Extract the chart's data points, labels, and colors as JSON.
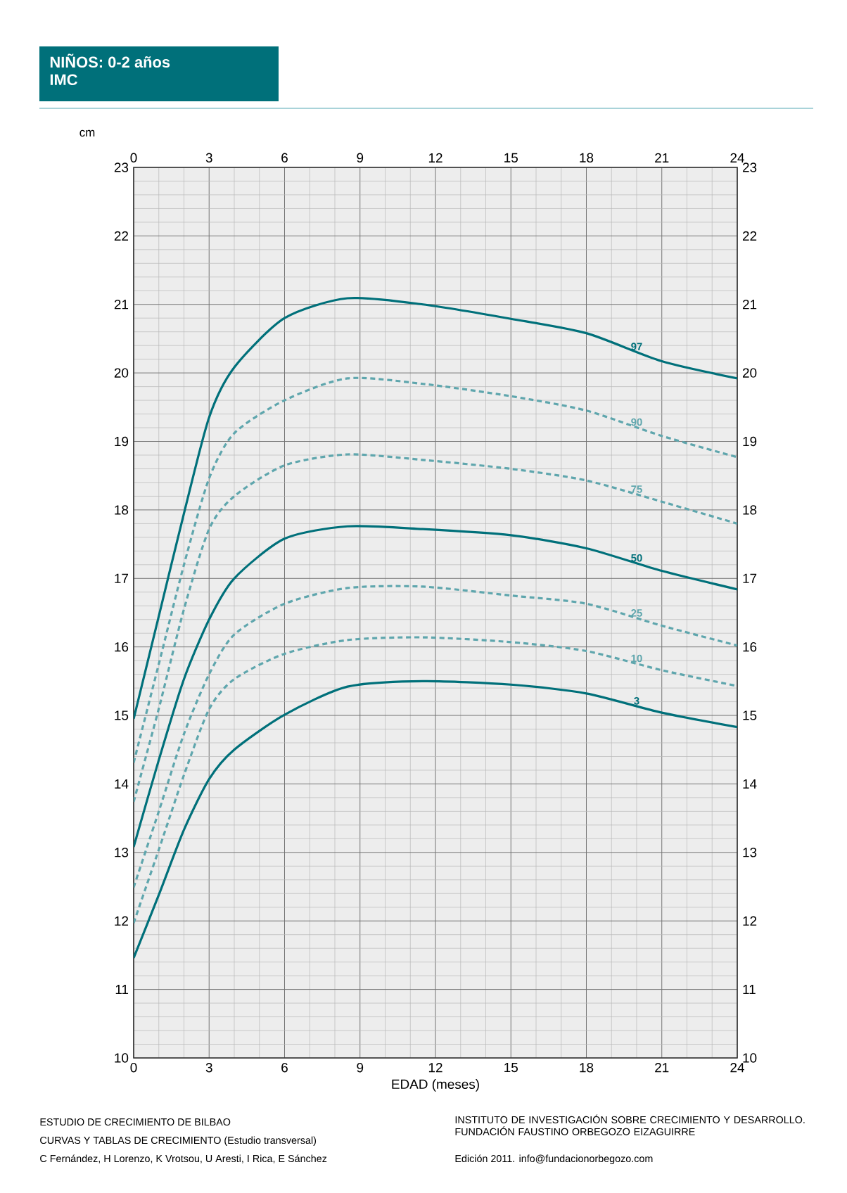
{
  "chart_data": {
    "type": "line",
    "title": "NIÑOS: 0-2 años",
    "subtitle": "IMC",
    "xlabel": "EDAD (meses)",
    "ylabel": "cm",
    "x": [
      0,
      1,
      2,
      3,
      4,
      6,
      8.5,
      11.5,
      15,
      18,
      21,
      24
    ],
    "series": [
      {
        "name": "3",
        "color": "#00707a",
        "line_style": "solid",
        "values": [
          11.46,
          12.38,
          13.33,
          14.07,
          14.5,
          15.01,
          15.42,
          15.5,
          15.45,
          15.32,
          15.04,
          14.83
        ]
      },
      {
        "name": "10",
        "color": "#5fa6ad",
        "line_style": "dashed",
        "values": [
          11.97,
          13.04,
          14.13,
          15.09,
          15.53,
          15.9,
          16.1,
          16.14,
          16.07,
          15.94,
          15.66,
          15.43
        ]
      },
      {
        "name": "25",
        "color": "#5fa6ad",
        "line_style": "dashed",
        "values": [
          12.49,
          13.6,
          14.73,
          15.6,
          16.18,
          16.63,
          16.86,
          16.88,
          16.75,
          16.63,
          16.31,
          16.02
        ]
      },
      {
        "name": "50",
        "color": "#00707a",
        "line_style": "solid",
        "values": [
          13.08,
          14.35,
          15.53,
          16.4,
          17.0,
          17.58,
          17.76,
          17.72,
          17.63,
          17.44,
          17.11,
          16.84
        ]
      },
      {
        "name": "75",
        "color": "#5fa6ad",
        "line_style": "dashed",
        "values": [
          13.74,
          15.1,
          16.55,
          17.72,
          18.2,
          18.65,
          18.81,
          18.73,
          18.6,
          18.43,
          18.12,
          17.8
        ]
      },
      {
        "name": "90",
        "color": "#5fa6ad",
        "line_style": "dashed",
        "values": [
          14.31,
          15.75,
          17.2,
          18.46,
          19.12,
          19.6,
          19.92,
          19.84,
          19.66,
          19.45,
          19.08,
          18.77
        ]
      },
      {
        "name": "97",
        "color": "#00707a",
        "line_style": "solid",
        "values": [
          14.95,
          16.45,
          17.95,
          19.35,
          20.08,
          20.8,
          21.09,
          21.0,
          20.79,
          20.58,
          20.17,
          19.92
        ]
      }
    ],
    "xlim": [
      0,
      24
    ],
    "xticks": [
      0,
      3,
      6,
      9,
      12,
      15,
      18,
      21,
      24
    ],
    "x2lim": [
      0,
      24
    ],
    "x2ticks": [
      0,
      3,
      6,
      9,
      12,
      15,
      18,
      21,
      24
    ],
    "ylim": [
      10,
      23
    ],
    "yticks": [
      10,
      11,
      12,
      13,
      14,
      15,
      16,
      17,
      18,
      19,
      20,
      21,
      22,
      23
    ],
    "y2lim": [
      10,
      23
    ],
    "y2ticks": [
      10,
      11,
      12,
      13,
      14,
      15,
      16,
      17,
      18,
      19,
      20,
      21,
      22,
      23
    ],
    "grid": true,
    "marker": "none",
    "annotations": [
      "ESTUDIO DE CRECIMIENTO DE BILBAO",
      "CURVAS Y TABLAS DE CRECIMIENTO (Estudio transversal)",
      "C Fernández, H Lorenzo, K Vrotsou, U Aresti, I Rica, E Sánchez",
      "INSTITUTO DE INVESTIGACIÓN SOBRE CRECIMIENTO Y DESARROLLO. FUNDACIÓN FAUSTINO ORBEGOZO EIZAGUIRRE",
      "Edición 2011. info@fundacionorbegozo.com"
    ]
  }
}
